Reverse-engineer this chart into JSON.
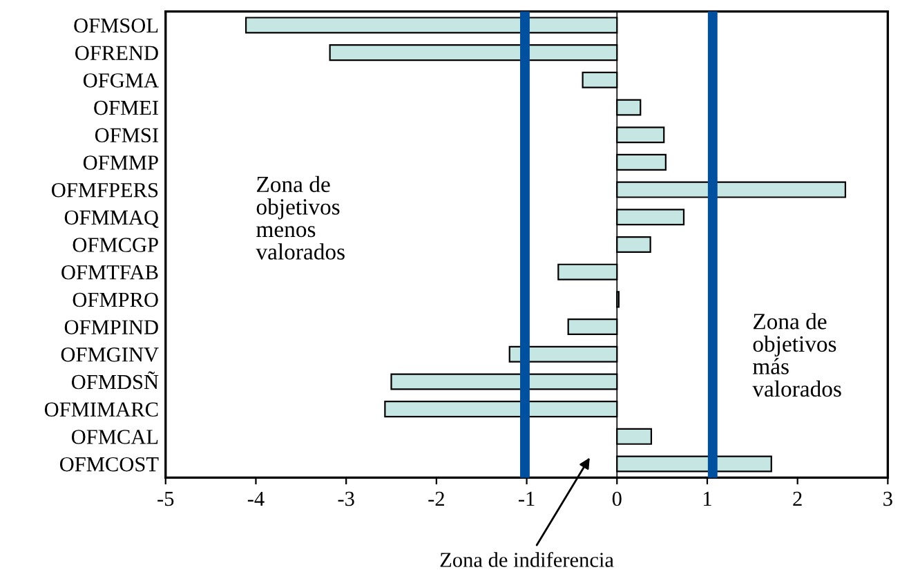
{
  "chart_data": {
    "type": "bar",
    "orientation": "horizontal",
    "categories": [
      "OFMSOL",
      "OFREND",
      "OFGMA",
      "OFMEI",
      "OFMSI",
      "OFMMP",
      "OFMFPERS",
      "OFMMAQ",
      "OFMCGP",
      "OFMTFAB",
      "OFMPRO",
      "OFMPIND",
      "OFMGINV",
      "OFMDSÑ",
      "OFMIMARC",
      "OFMCAL",
      "OFMCOST"
    ],
    "values": [
      -4.11,
      -3.18,
      -0.38,
      0.26,
      0.52,
      0.54,
      2.53,
      0.74,
      0.37,
      -0.65,
      0.02,
      -0.54,
      -1.19,
      -2.5,
      -2.57,
      0.38,
      1.71
    ],
    "color": "#c6e6e3",
    "xlim": [
      -5,
      3
    ],
    "xticks": [
      -5,
      -4,
      -3,
      -2,
      -1,
      0,
      1,
      2,
      3
    ],
    "ref_lines": [
      {
        "axis": "x",
        "value": -1.02,
        "color": "#0050a0"
      },
      {
        "axis": "x",
        "value": 1.06,
        "color": "#0050a0"
      }
    ],
    "annotations": [
      "Zona de\nobjetivos\nmenos\nvalorados",
      "Zona de\nobjetivos\nmás\nvalorados",
      "Zona de indiferencia"
    ],
    "grid": false,
    "legend": false
  }
}
